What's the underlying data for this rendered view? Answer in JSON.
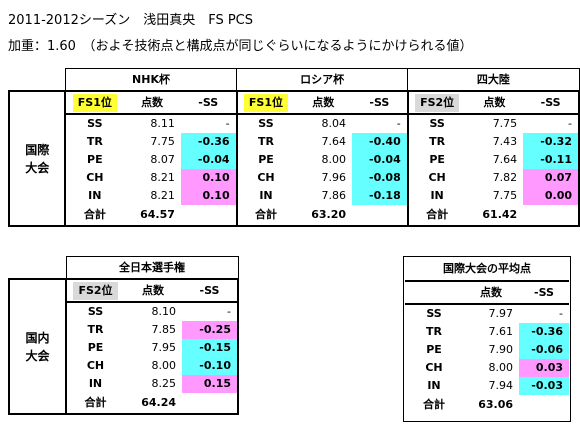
{
  "title": "2011-2012シーズン　浅田真央　FS PCS",
  "weight_note": "加重：1.60　（およそ技術点と構成点が同じぐらいになるようにかけられる値）",
  "international": {
    "label": "国際\n大会",
    "events": [
      {
        "name": "NHK杯",
        "rank": "FS1位",
        "rank_color": "#ffff33",
        "score_header": "点数",
        "ss_header": "-SS",
        "rows": [
          {
            "code": "SS",
            "score": "8.11",
            "diff": "-",
            "color": ""
          },
          {
            "code": "TR",
            "score": "7.75",
            "diff": "-0.36",
            "color": "cyan"
          },
          {
            "code": "PE",
            "score": "8.07",
            "diff": "-0.04",
            "color": "cyan"
          },
          {
            "code": "CH",
            "score": "8.21",
            "diff": "0.10",
            "color": "pink"
          },
          {
            "code": "IN",
            "score": "8.21",
            "diff": "0.10",
            "color": "pink"
          }
        ],
        "total_label": "合計",
        "total": "64.57"
      },
      {
        "name": "ロシア杯",
        "rank": "FS1位",
        "rank_color": "#ffff33",
        "score_header": "点数",
        "ss_header": "-SS",
        "rows": [
          {
            "code": "SS",
            "score": "8.04",
            "diff": "-",
            "color": ""
          },
          {
            "code": "TR",
            "score": "7.64",
            "diff": "-0.40",
            "color": "cyan"
          },
          {
            "code": "PE",
            "score": "8.00",
            "diff": "-0.04",
            "color": "cyan"
          },
          {
            "code": "CH",
            "score": "7.96",
            "diff": "-0.08",
            "color": "cyan"
          },
          {
            "code": "IN",
            "score": "7.86",
            "diff": "-0.18",
            "color": "cyan"
          }
        ],
        "total_label": "合計",
        "total": "63.20"
      },
      {
        "name": "四大陸",
        "rank": "FS2位",
        "rank_color": "#d9d9d9",
        "score_header": "点数",
        "ss_header": "-SS",
        "rows": [
          {
            "code": "SS",
            "score": "7.75",
            "diff": "-",
            "color": ""
          },
          {
            "code": "TR",
            "score": "7.43",
            "diff": "-0.32",
            "color": "cyan"
          },
          {
            "code": "PE",
            "score": "7.64",
            "diff": "-0.11",
            "color": "cyan"
          },
          {
            "code": "CH",
            "score": "7.82",
            "diff": "0.07",
            "color": "pink"
          },
          {
            "code": "IN",
            "score": "7.75",
            "diff": "0.00",
            "color": "pink"
          }
        ],
        "total_label": "合計",
        "total": "61.42"
      }
    ]
  },
  "domestic": {
    "label": "国内\n大会",
    "events": [
      {
        "name": "全日本選手権",
        "rank": "FS2位",
        "rank_color": "#d9d9d9",
        "score_header": "点数",
        "ss_header": "-SS",
        "rows": [
          {
            "code": "SS",
            "score": "8.10",
            "diff": "-",
            "color": ""
          },
          {
            "code": "TR",
            "score": "7.85",
            "diff": "-0.25",
            "color": "pink"
          },
          {
            "code": "PE",
            "score": "7.95",
            "diff": "-0.15",
            "color": "cyan"
          },
          {
            "code": "CH",
            "score": "8.00",
            "diff": "-0.10",
            "color": "cyan"
          },
          {
            "code": "IN",
            "score": "8.25",
            "diff": "0.15",
            "color": "pink"
          }
        ],
        "total_label": "合計",
        "total": "64.24"
      }
    ]
  },
  "average": {
    "name": "国際大会の平均点",
    "score_header": "点数",
    "ss_header": "-SS",
    "rows": [
      {
        "code": "SS",
        "score": "7.97",
        "diff": "-",
        "color": ""
      },
      {
        "code": "TR",
        "score": "7.61",
        "diff": "-0.36",
        "color": "cyan"
      },
      {
        "code": "PE",
        "score": "7.90",
        "diff": "-0.06",
        "color": "cyan"
      },
      {
        "code": "CH",
        "score": "8.00",
        "diff": "0.03",
        "color": "pink"
      },
      {
        "code": "IN",
        "score": "7.94",
        "diff": "-0.03",
        "color": "cyan"
      }
    ],
    "total_label": "合計",
    "total": "63.06"
  }
}
